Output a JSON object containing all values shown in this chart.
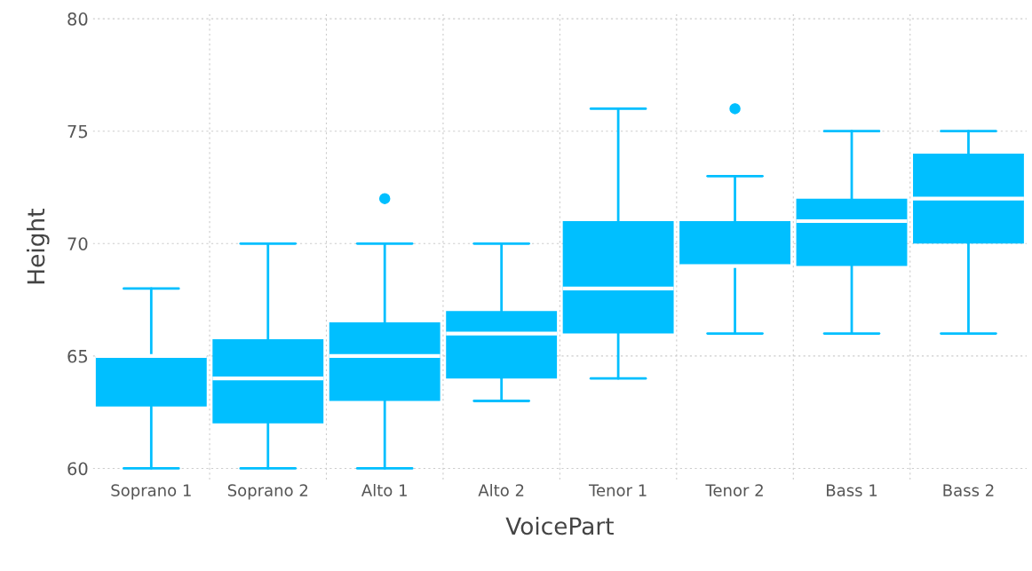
{
  "chart_data": {
    "type": "box",
    "xlabel": "VoicePart",
    "ylabel": "Height",
    "categories": [
      "Soprano 1",
      "Soprano 2",
      "Alto 1",
      "Alto 2",
      "Tenor 1",
      "Tenor 2",
      "Bass 1",
      "Bass 2"
    ],
    "boxes": [
      {
        "low": 60,
        "q1": 62.75,
        "median": 65,
        "q3": 65,
        "high": 68
      },
      {
        "low": 60,
        "q1": 62,
        "median": 64,
        "q3": 65.75,
        "high": 70
      },
      {
        "low": 60,
        "q1": 63,
        "median": 65,
        "q3": 66.5,
        "high": 70,
        "outliers": [
          72
        ]
      },
      {
        "low": 63,
        "q1": 64,
        "median": 66,
        "q3": 67,
        "high": 70
      },
      {
        "low": 64,
        "q1": 66,
        "median": 68,
        "q3": 71,
        "high": 76
      },
      {
        "low": 66,
        "q1": 69,
        "median": 69,
        "q3": 71,
        "high": 73,
        "outliers": [
          76
        ]
      },
      {
        "low": 66,
        "q1": 69,
        "median": 71,
        "q3": 72,
        "high": 75
      },
      {
        "low": 66,
        "q1": 70,
        "median": 72,
        "q3": 74,
        "high": 75
      }
    ],
    "color": "#00bfff",
    "ylim": [
      59.5,
      80.2
    ],
    "yticks": [
      60,
      65,
      70,
      75,
      80
    ],
    "grid": true
  }
}
